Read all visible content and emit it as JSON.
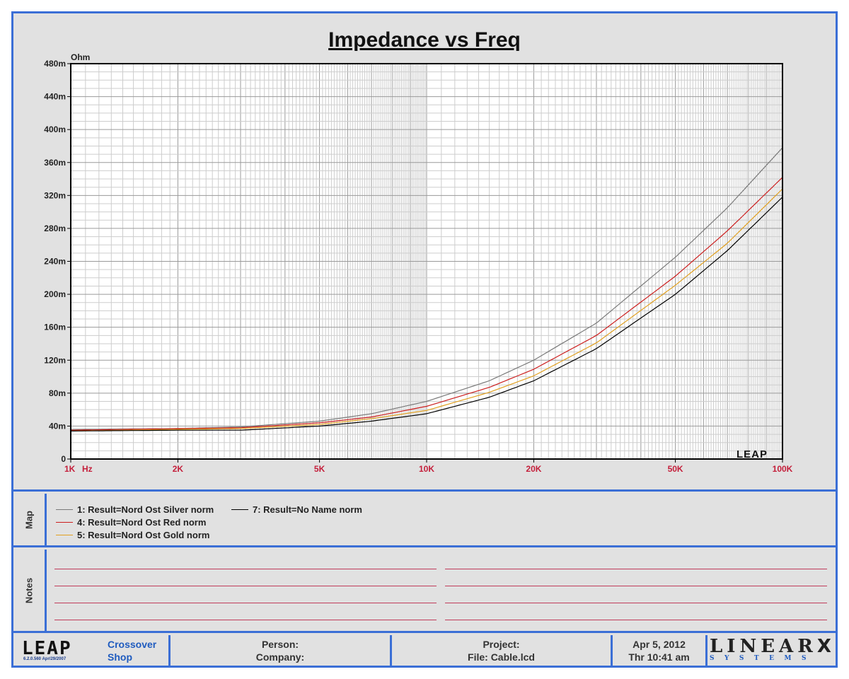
{
  "chart_data": {
    "type": "line",
    "title": "Impedance vs Freq",
    "ylabel": "Ohm",
    "xlabel": "Hz",
    "x_scale": "log",
    "xlim": [
      1000,
      100000
    ],
    "ylim": [
      0,
      0.48
    ],
    "y_ticks": [
      {
        "value": 0,
        "label": "0"
      },
      {
        "value": 0.04,
        "label": "40m"
      },
      {
        "value": 0.08,
        "label": "80m"
      },
      {
        "value": 0.12,
        "label": "120m"
      },
      {
        "value": 0.16,
        "label": "160m"
      },
      {
        "value": 0.2,
        "label": "200m"
      },
      {
        "value": 0.24,
        "label": "240m"
      },
      {
        "value": 0.28,
        "label": "280m"
      },
      {
        "value": 0.32,
        "label": "320m"
      },
      {
        "value": 0.36,
        "label": "360m"
      },
      {
        "value": 0.4,
        "label": "400m"
      },
      {
        "value": 0.44,
        "label": "440m"
      },
      {
        "value": 0.48,
        "label": "480m"
      }
    ],
    "x_ticks": [
      {
        "value": 1000,
        "label": "1K"
      },
      {
        "value": 2000,
        "label": "2K"
      },
      {
        "value": 5000,
        "label": "5K"
      },
      {
        "value": 10000,
        "label": "10K"
      },
      {
        "value": 20000,
        "label": "20K"
      },
      {
        "value": 50000,
        "label": "50K"
      },
      {
        "value": 100000,
        "label": "100K"
      }
    ],
    "x": [
      1000,
      2000,
      3000,
      5000,
      7000,
      10000,
      15000,
      20000,
      30000,
      50000,
      70000,
      100000
    ],
    "series": [
      {
        "name": "1: Result=Nord Ost Silver norm",
        "color": "#7a7a7a",
        "values": [
          0.036,
          0.037,
          0.039,
          0.046,
          0.055,
          0.07,
          0.095,
          0.12,
          0.165,
          0.245,
          0.305,
          0.378
        ]
      },
      {
        "name": "4: Result=Nord Ost Red norm",
        "color": "#cc1e1e",
        "values": [
          0.035,
          0.037,
          0.038,
          0.044,
          0.051,
          0.064,
          0.087,
          0.109,
          0.15,
          0.222,
          0.277,
          0.342
        ]
      },
      {
        "name": "5: Result=Nord Ost Gold norm",
        "color": "#e0a020",
        "values": [
          0.034,
          0.036,
          0.037,
          0.042,
          0.049,
          0.059,
          0.081,
          0.101,
          0.141,
          0.211,
          0.262,
          0.328
        ]
      },
      {
        "name": "7: Result=No Name norm",
        "color": "#000000",
        "values": [
          0.034,
          0.035,
          0.035,
          0.04,
          0.046,
          0.055,
          0.075,
          0.095,
          0.134,
          0.2,
          0.253,
          0.318
        ]
      }
    ],
    "grid": true,
    "legend_position": "bottom"
  },
  "map": {
    "label": "Map"
  },
  "notes": {
    "label": "Notes"
  },
  "footer": {
    "logo": "LEAP",
    "plot_logo": "LEAP",
    "version": "6.2.0.560  Apr/29/2007",
    "product_line1": "Crossover",
    "product_line2": "Shop",
    "person": "Person:",
    "company": "Company:",
    "project": "Project:",
    "file": "File: Cable.lcd",
    "date": "Apr  5, 2012",
    "time": "Thr 10:41 am",
    "brand_main": "LINEAR",
    "brand_x": "X",
    "brand_sub": "SYSTEMS"
  }
}
